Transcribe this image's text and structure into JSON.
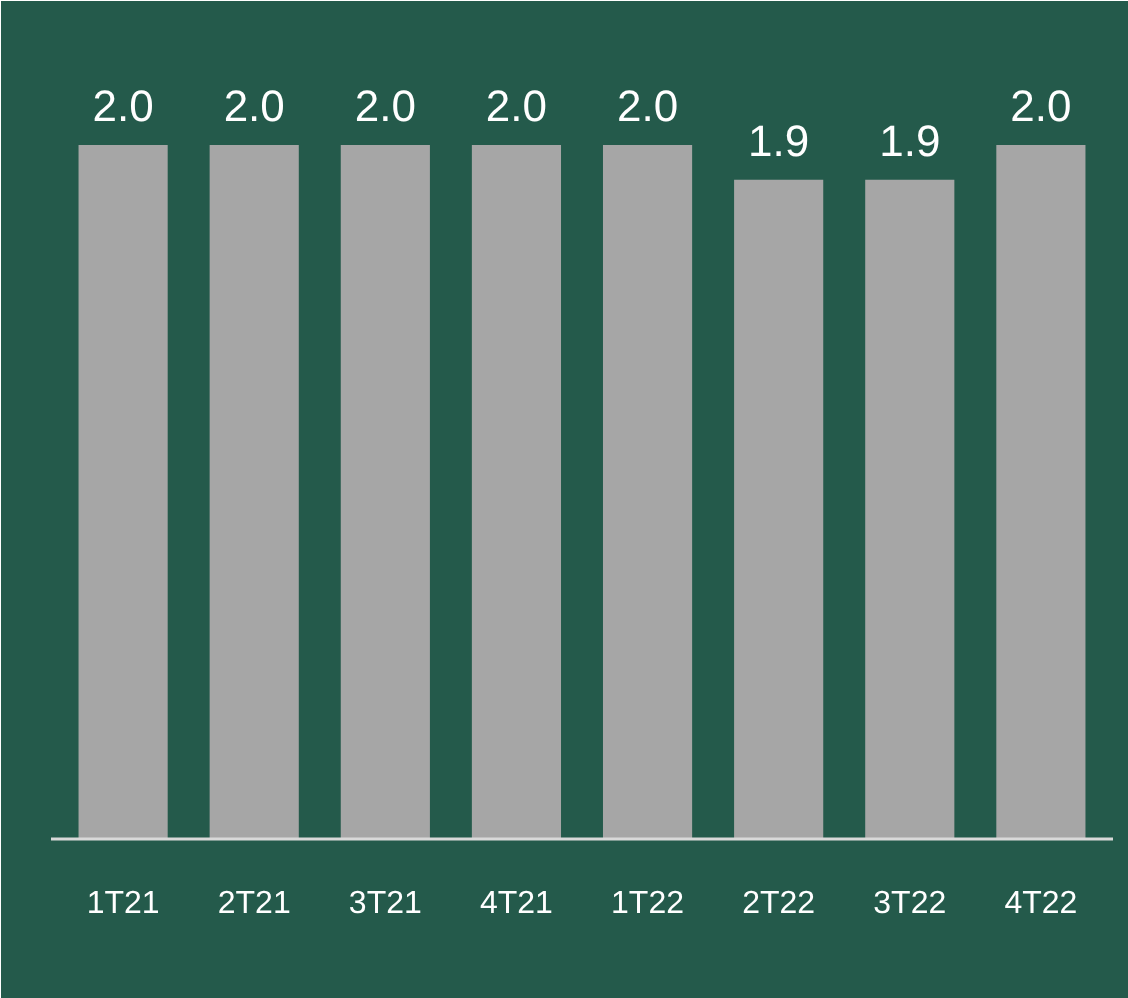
{
  "chart_data": {
    "type": "bar",
    "categories": [
      "1T21",
      "2T21",
      "3T21",
      "4T21",
      "1T22",
      "2T22",
      "3T22",
      "4T22"
    ],
    "values": [
      2.0,
      2.0,
      2.0,
      2.0,
      2.0,
      1.9,
      1.9,
      2.0
    ],
    "value_labels": [
      "2.0",
      "2.0",
      "2.0",
      "2.0",
      "2.0",
      "1.9",
      "1.9",
      "2.0"
    ],
    "color": "#a6a6a6"
  }
}
